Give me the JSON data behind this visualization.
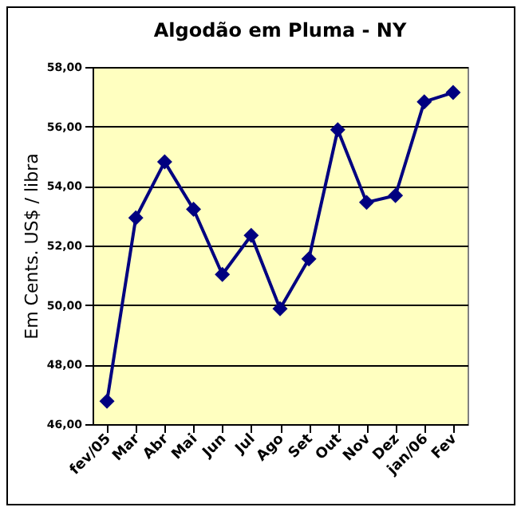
{
  "chart_data": {
    "type": "line",
    "title": "Algodão em Pluma - NY",
    "ylabel": "Em Cents. US$ / libra",
    "categories": [
      "fev/05",
      "Mar",
      "Abr",
      "Mai",
      "Jun",
      "Jul",
      "Ago",
      "Set",
      "Out",
      "Nov",
      "Dez",
      "jan/06",
      "Fev"
    ],
    "series": [
      {
        "color": "#000080",
        "values": [
          46.77,
          52.93,
          54.81,
          53.22,
          51.03,
          52.34,
          49.88,
          51.55,
          55.89,
          53.45,
          53.68,
          56.83,
          57.14
        ]
      }
    ],
    "ylim": [
      46,
      58
    ],
    "yticks": [
      {
        "value": 46,
        "label": "46,00"
      },
      {
        "value": 48,
        "label": "48,00"
      },
      {
        "value": 50,
        "label": "50,00"
      },
      {
        "value": 52,
        "label": "52,00"
      },
      {
        "value": 54,
        "label": "54,00"
      },
      {
        "value": 56,
        "label": "56,00"
      },
      {
        "value": 58,
        "label": "58,00"
      }
    ],
    "grid": "y",
    "marker": "diamond",
    "line_style": "solid"
  }
}
